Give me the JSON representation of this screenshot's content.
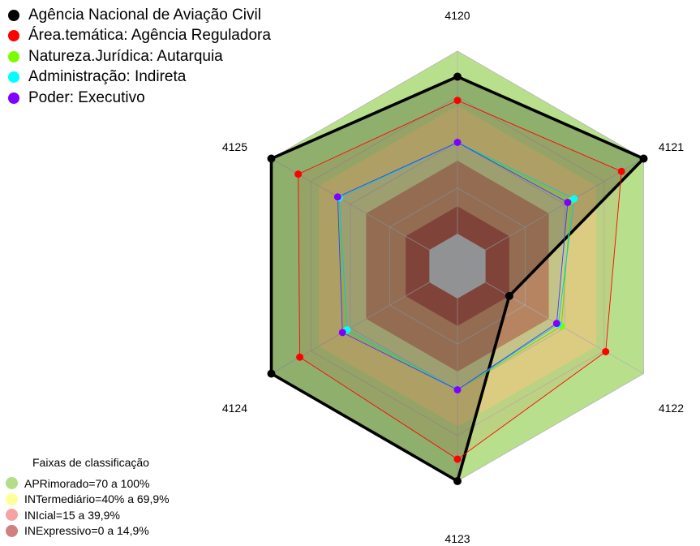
{
  "chart_data": {
    "type": "radar",
    "axes": [
      "4120",
      "4121",
      "4122",
      "4123",
      "4124",
      "4125"
    ],
    "rlim": [
      0,
      100
    ],
    "series": [
      {
        "name": "Agência Nacional de Aviação Civil",
        "color": "#000000",
        "values": [
          86,
          100,
          15,
          100,
          100,
          100
        ]
      },
      {
        "name": "Área.temática: Agência Reguladora",
        "color": "#ff0000",
        "values": [
          73,
          86,
          76,
          88,
          82,
          83
        ]
      },
      {
        "name": "Natureza.Jurídica: Autarquia",
        "color": "#7cfc00",
        "values": [
          50,
          54,
          48,
          50,
          53,
          58
        ]
      },
      {
        "name": "Administração: Indireta",
        "color": "#00ffff",
        "values": [
          50,
          56,
          46,
          50,
          52,
          57
        ]
      },
      {
        "name": "Poder: Executivo",
        "color": "#8000ff",
        "values": [
          50,
          52,
          45,
          50,
          55,
          58
        ]
      }
    ]
  },
  "bands": {
    "title": "Faixas de classificação",
    "items": [
      {
        "label": "APRimorado=70 a 100%",
        "color": "#b3dd8a"
      },
      {
        "label": "INTermediário=40% a 69,9%",
        "color": "#ffff99"
      },
      {
        "label": "INIcial=15 a 39,9%",
        "color": "#f7a3a3"
      },
      {
        "label": "INExpressivo=0 a 14,9%",
        "color": "#d08080"
      }
    ]
  }
}
